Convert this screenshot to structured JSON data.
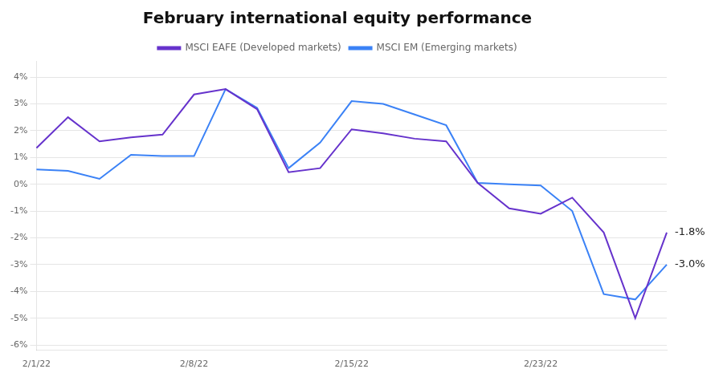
{
  "chart_data": {
    "type": "line",
    "title": "February international equity performance",
    "categories": [
      "2/1/22",
      null,
      null,
      null,
      null,
      "2/8/22",
      null,
      null,
      null,
      null,
      "2/15/22",
      null,
      null,
      null,
      null,
      null,
      "2/23/22",
      null,
      null,
      null,
      null
    ],
    "series": [
      {
        "name": "MSCI EAFE (Developed markets)",
        "color": "#6633cc",
        "annotation": "-1.8%",
        "values": [
          1.35,
          2.5,
          1.6,
          1.75,
          1.85,
          3.35,
          3.55,
          2.8,
          0.45,
          0.6,
          2.05,
          1.9,
          1.7,
          1.6,
          0.05,
          -0.9,
          -1.1,
          -0.5,
          -1.8,
          -5.0,
          -1.8
        ]
      },
      {
        "name": "MSCI EM (Emerging markets)",
        "color": "#3B82F6",
        "annotation": "-3.0%",
        "values": [
          0.55,
          0.5,
          0.2,
          1.1,
          1.05,
          1.05,
          3.55,
          2.85,
          0.6,
          1.55,
          3.1,
          3.0,
          2.6,
          2.2,
          0.05,
          0.0,
          -0.05,
          -1.0,
          -4.1,
          -4.3,
          -3.0
        ]
      }
    ],
    "ylim": [
      -6.2,
      4.6
    ],
    "yticks": [
      {
        "value": -6,
        "label": "-6%"
      },
      {
        "value": -5,
        "label": "-5%"
      },
      {
        "value": -4,
        "label": "-4%"
      },
      {
        "value": -3,
        "label": "-3%"
      },
      {
        "value": -2,
        "label": "-2%"
      },
      {
        "value": -1,
        "label": "-1%"
      },
      {
        "value": 0,
        "label": "0%"
      },
      {
        "value": 1,
        "label": "1%"
      },
      {
        "value": 2,
        "label": "2%"
      },
      {
        "value": 3,
        "label": "3%"
      },
      {
        "value": 4,
        "label": "4%"
      }
    ],
    "grid": "y",
    "legend": "top"
  }
}
